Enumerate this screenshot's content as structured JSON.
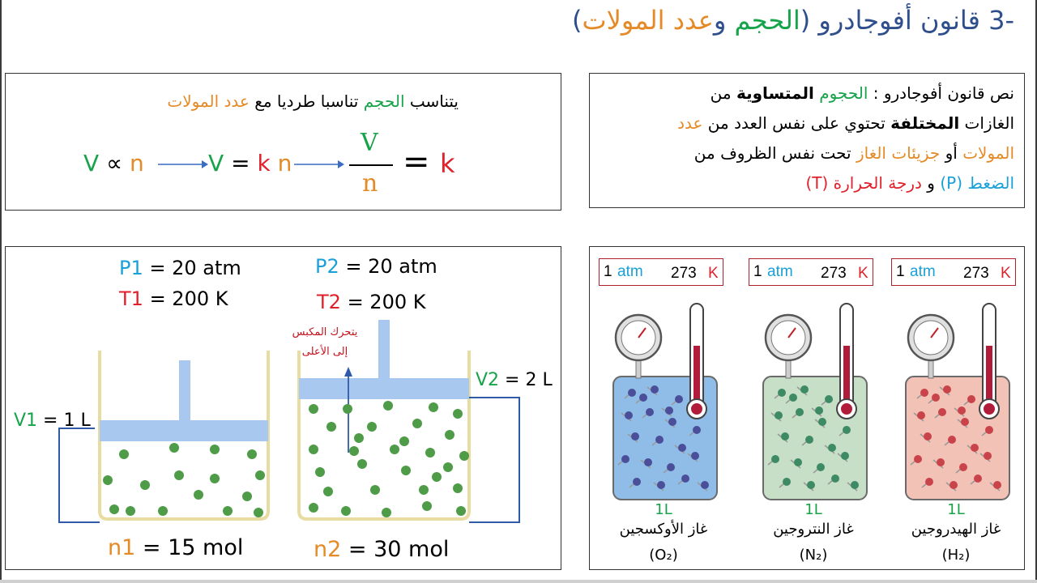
{
  "title": {
    "prefix": "-3 قانون أفوجادرو (",
    "volume": "الحجم",
    "and": " و",
    "moles": "عدد المولات",
    "suffix": ")"
  },
  "proportion": {
    "sentence_start": "يتناسب ",
    "volume": "الحجم",
    "sentence_mid": " تناسبا طرديا مع ",
    "moles": "عدد المولات",
    "eq_V": "V",
    "eq_prop": "∝",
    "eq_n": "n",
    "eq2_V": "V",
    "eq2_eq": "=",
    "eq2_k": "k",
    "eq2_n": "n",
    "frac_num": "V",
    "frac_den": "n",
    "frac_eq": "=",
    "frac_k": "k"
  },
  "law": {
    "l1_a": "نص قانون أفوجادرو : ",
    "l1_b": "الحجوم",
    "l1_c": " ",
    "l1_d": "المتساوية",
    "l1_e": " من",
    "l2_a": "الغازات ",
    "l2_b": "المختلفة",
    "l2_c": " تحتوي على نفس العدد من ",
    "l2_d": "عدد",
    "l3_a": "المولات",
    "l3_b": " أو ",
    "l3_c": "جزيئات الغاز",
    "l3_d": " تحت نفس الظروف من",
    "l4_a": "الضغط ",
    "l4_b": "(P)",
    "l4_c": " و ",
    "l4_d": "درجة الحرارة",
    "l4_e": " (T)"
  },
  "experiment": {
    "p1_sym": "P1",
    "p1_val": " = 20 atm",
    "t1_sym": "T1",
    "t1_val": " = 200 K",
    "p2_sym": "P2",
    "p2_val": " = 20 atm",
    "t2_sym": "T2",
    "t2_val": " = 200 K",
    "piston_note_1": "يتحرك المكبس",
    "piston_note_2": "إلى الأعلى",
    "v1_sym": "V1",
    "v1_val": " = 1 L",
    "v2_sym": "V2",
    "v2_val": " = 2 L",
    "n1_sym": "n1",
    "n1_val": " = 15 mol",
    "n2_sym": "n2",
    "n2_val": " = 30 mol"
  },
  "gases": [
    {
      "pressure_val": "1",
      "pressure_unit": "atm",
      "temp_val": "273",
      "temp_unit": "K",
      "volume": "1L",
      "name": "غاز الهيدروجين",
      "formula": "(H₂)",
      "fill": "#f3c2b6",
      "particle": "#c9444a"
    },
    {
      "pressure_val": "1",
      "pressure_unit": "atm",
      "temp_val": "273",
      "temp_unit": "K",
      "volume": "1L",
      "name": "غاز النتروجين",
      "formula": "(N₂)",
      "fill": "#c6dfc6",
      "particle": "#3d8a64"
    },
    {
      "pressure_val": "1",
      "pressure_unit": "atm",
      "temp_val": "273",
      "temp_unit": "K",
      "volume": "1L",
      "name": "غاز الأوكسجين",
      "formula": "(O₂)",
      "fill": "#8fbde8",
      "particle": "#4b4f9a"
    }
  ],
  "colors": {
    "green": "#16a34a",
    "orange": "#e48a26",
    "red": "#e0212b",
    "blue": "#1aa0d8",
    "navy": "#2f4e8c",
    "piston": "#a9c8ef",
    "particle": "#4e9c48",
    "beaker": "#e9dca2"
  }
}
